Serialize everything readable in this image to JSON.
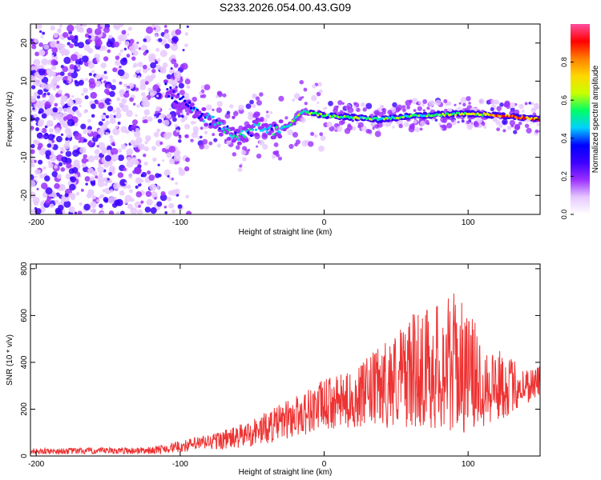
{
  "title": "S233.2026.054.00.43.G09",
  "chart_data": [
    {
      "type": "heatmap",
      "xlabel": "Height of straight line (km)",
      "ylabel": "Frequency (Hz)",
      "xlim": [
        -204,
        150
      ],
      "ylim": [
        -25,
        25
      ],
      "xticks": [
        -200,
        -100,
        0,
        100
      ],
      "yticks": [
        -20,
        -10,
        0,
        10,
        20
      ],
      "colorbar": {
        "label": "Normalized spectral amplitude",
        "range": [
          0,
          1
        ],
        "ticks": [
          "0.0",
          "0.2",
          "0.4",
          "0.6",
          "0.8"
        ],
        "tick_values": [
          0,
          0.2,
          0.4,
          0.6,
          0.8
        ],
        "colors": [
          "#ffffff",
          "#e6c8ff",
          "#9b30ff",
          "#3b00ff",
          "#0000ff",
          "#00d0ff",
          "#00ff66",
          "#c8ff00",
          "#ffd700",
          "#ff7f00",
          "#ff0000",
          "#ff4fa0"
        ]
      },
      "ridge": {
        "x": [
          -204,
          -150,
          -110,
          -100,
          -80,
          -60,
          -45,
          -35,
          -25,
          -15,
          0,
          20,
          40,
          60,
          80,
          100,
          120,
          150
        ],
        "freq": [
          0,
          3,
          8,
          5,
          0,
          -5,
          -2,
          -3,
          -2,
          2,
          1,
          0.5,
          0,
          0.8,
          1.2,
          1.5,
          1,
          0
        ],
        "amplitude": [
          0.2,
          0.25,
          0.35,
          0.4,
          0.45,
          0.5,
          0.5,
          0.5,
          0.55,
          0.55,
          0.6,
          0.6,
          0.6,
          0.6,
          0.62,
          0.65,
          0.85,
          0.95
        ]
      }
    },
    {
      "type": "line",
      "xlabel": "Height of straight line (km)",
      "ylabel": "SNR (10 * v/v)",
      "xlim": [
        -204,
        150
      ],
      "ylim": [
        0,
        820
      ],
      "xticks": [
        -200,
        -100,
        0,
        100
      ],
      "yticks": [
        0,
        200,
        400,
        600,
        800
      ],
      "color": "#ee3333",
      "envelope": {
        "x": [
          -204,
          -150,
          -120,
          -100,
          -80,
          -60,
          -40,
          -20,
          0,
          20,
          40,
          60,
          70,
          80,
          90,
          100,
          110,
          120,
          140,
          150
        ],
        "mean": [
          20,
          22,
          24,
          40,
          60,
          80,
          120,
          170,
          220,
          240,
          300,
          360,
          380,
          380,
          400,
          360,
          320,
          300,
          300,
          320
        ],
        "spread": [
          12,
          14,
          15,
          25,
          35,
          50,
          70,
          90,
          110,
          120,
          180,
          240,
          260,
          280,
          300,
          260,
          200,
          160,
          80,
          70
        ]
      }
    }
  ]
}
